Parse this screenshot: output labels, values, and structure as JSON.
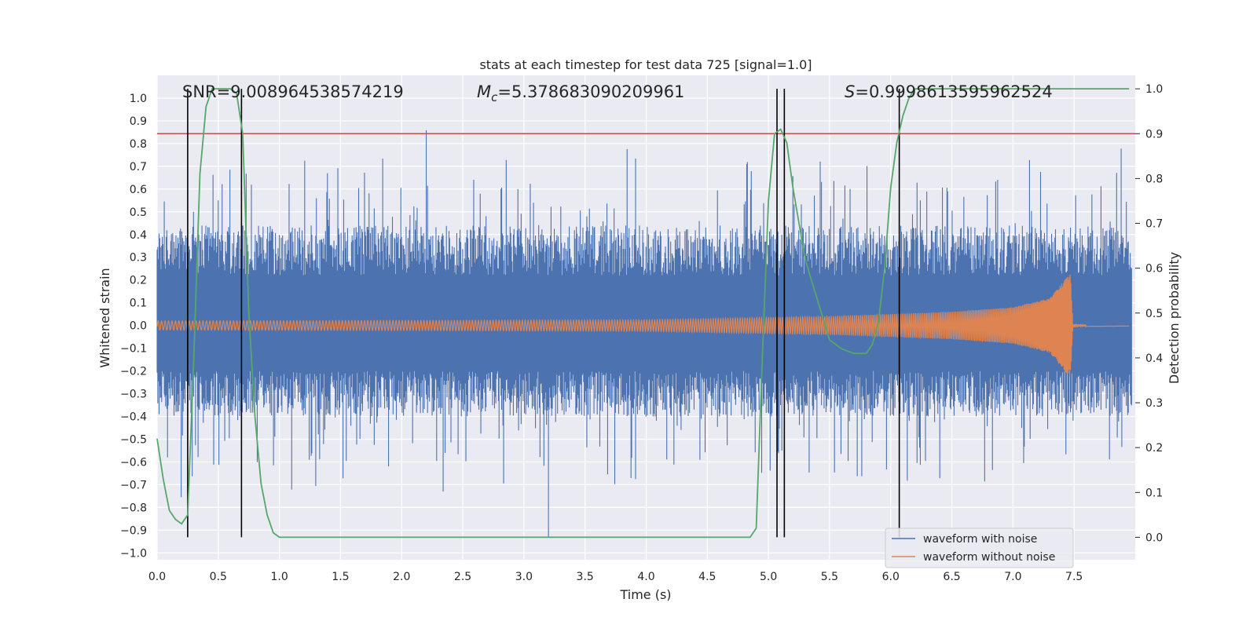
{
  "chart_data": {
    "type": "line",
    "title": "stats at each timestep for test data 725 [signal=1.0]",
    "xlabel": "Time (s)",
    "ylabel_left": "Whitened strain",
    "ylabel_right": "Detection probability",
    "xlim": [
      0.0,
      8.0
    ],
    "ylim_left": [
      -1.03,
      1.1
    ],
    "ylim_right": [
      -0.05,
      1.03
    ],
    "x_ticks": [
      "0.0",
      "0.5",
      "1.0",
      "1.5",
      "2.0",
      "2.5",
      "3.0",
      "3.5",
      "4.0",
      "4.5",
      "5.0",
      "5.5",
      "6.0",
      "6.5",
      "7.0",
      "7.5"
    ],
    "y_left_ticks": [
      "1.0",
      "0.9",
      "0.8",
      "0.7",
      "0.6",
      "0.5",
      "0.4",
      "0.3",
      "0.2",
      "0.1",
      "0.0",
      "−0.1",
      "−0.2",
      "−0.3",
      "−0.4",
      "−0.5",
      "−0.6",
      "−0.7",
      "−0.8",
      "−0.9",
      "−1.0"
    ],
    "y_right_ticks": [
      "1.0",
      "0.9",
      "0.8",
      "0.7",
      "0.6",
      "0.5",
      "0.4",
      "0.3",
      "0.2",
      "0.1",
      "0.0"
    ],
    "annotations": {
      "snr": "SNR=9.008964538574219",
      "mc_symbol": "M",
      "mc_sub": "c",
      "mc_value": "=5.378683090209961",
      "s_symbol": "S",
      "s_value": "=0.9998613595962524"
    },
    "threshold_right": 0.9,
    "vertical_lines_x": [
      0.25,
      0.69,
      5.07,
      5.13,
      6.07
    ],
    "series": [
      {
        "name": "waveform with noise",
        "axis": "left",
        "color": "#4c72b0",
        "description": "noisy whitened strain from 0.0 to 8.0 s, amplitude mostly within -0.5..0.6 with peaks near ±0.9"
      },
      {
        "name": "waveform without noise",
        "axis": "left",
        "color": "#dd8452",
        "description": "chirp signal with growing amplitude, merger near 7.47 s",
        "envelope": {
          "t": [
            0.0,
            2.0,
            4.0,
            5.5,
            6.5,
            7.0,
            7.3,
            7.47,
            7.49,
            7.95
          ],
          "amp": [
            0.02,
            0.022,
            0.025,
            0.04,
            0.06,
            0.08,
            0.12,
            0.23,
            0.005,
            0.003
          ]
        }
      },
      {
        "name": "detection probability",
        "axis": "right",
        "color": "#55a868",
        "x": [
          0.0,
          0.05,
          0.1,
          0.15,
          0.2,
          0.25,
          0.3,
          0.35,
          0.4,
          0.45,
          0.6,
          0.65,
          0.7,
          0.75,
          0.8,
          0.85,
          0.9,
          0.95,
          1.0,
          1.05,
          4.85,
          4.9,
          4.95,
          5.0,
          5.05,
          5.1,
          5.15,
          5.2,
          5.3,
          5.5,
          5.6,
          5.7,
          5.8,
          5.85,
          5.9,
          5.95,
          6.0,
          6.05,
          6.1,
          6.15,
          6.2,
          6.3,
          7.95
        ],
        "y": [
          0.22,
          0.13,
          0.06,
          0.04,
          0.03,
          0.05,
          0.4,
          0.81,
          0.96,
          1.0,
          1.0,
          0.99,
          0.9,
          0.5,
          0.27,
          0.12,
          0.05,
          0.01,
          0.0,
          0.0,
          0.0,
          0.02,
          0.4,
          0.75,
          0.9,
          0.91,
          0.88,
          0.78,
          0.62,
          0.44,
          0.42,
          0.41,
          0.41,
          0.43,
          0.48,
          0.6,
          0.78,
          0.88,
          0.94,
          0.98,
          1.0,
          1.0,
          1.0
        ]
      }
    ],
    "legend": {
      "position": "lower-right",
      "entries": [
        {
          "label": "waveform with noise",
          "color": "#4c72b0"
        },
        {
          "label": "waveform without noise",
          "color": "#dd8452"
        }
      ]
    }
  },
  "colors": {
    "plot_background": "#eaeaf2",
    "grid": "#ffffff",
    "threshold": "#c44e52",
    "vertical_lines": "#000000"
  }
}
